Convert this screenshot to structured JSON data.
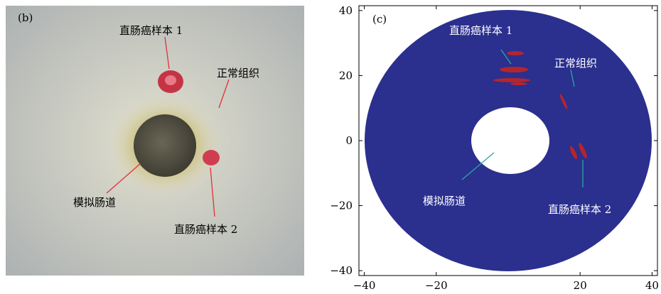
{
  "panels": [
    {
      "label": "(b)",
      "annotations": [
        "直肠癌样本 1",
        "正常组织",
        "模拟肠道",
        "直肠癌样本 2"
      ]
    },
    {
      "label": "(c)",
      "annotations": [
        "直肠癌样本 1",
        "正常组织",
        "模拟肠道",
        "直肠癌样本 2"
      ],
      "xlim": [
        -41.5,
        41.5
      ],
      "ylim": [
        -41.5,
        41.5
      ],
      "xticks": [
        {
          "value": -40,
          "label": "−40"
        },
        {
          "value": -20,
          "label": "−20"
        },
        20,
        40
      ],
      "yticks": [
        40,
        20,
        0,
        {
          "value": -20,
          "label": "−20"
        },
        {
          "value": -40,
          "label": "−40"
        }
      ]
    }
  ]
}
